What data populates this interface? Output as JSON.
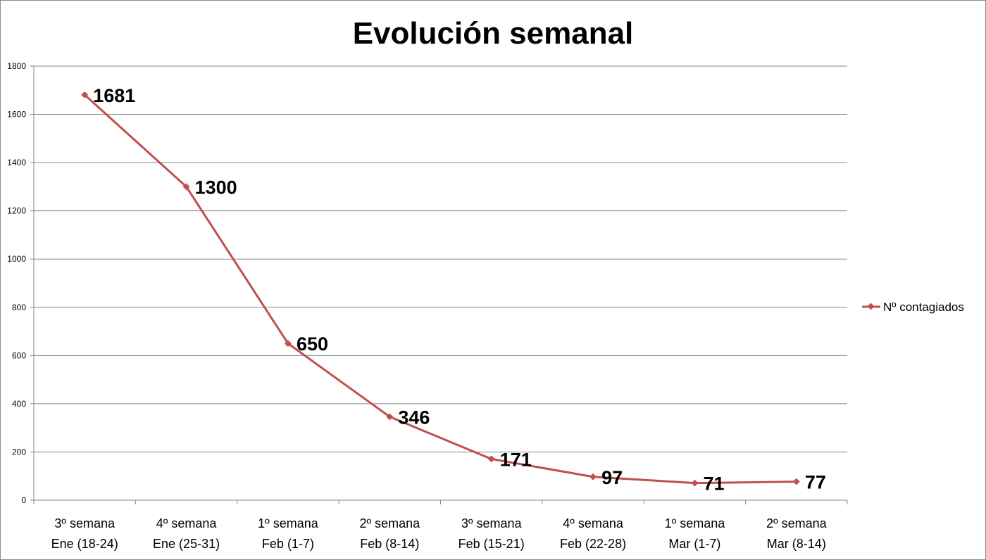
{
  "chart_data": {
    "type": "line",
    "title": "Evolución semanal",
    "categories": [
      [
        "3º semana",
        "Ene (18-24)"
      ],
      [
        "4º semana",
        "Ene (25-31)"
      ],
      [
        "1º semana",
        "Feb (1-7)"
      ],
      [
        "2º semana",
        "Feb (8-14)"
      ],
      [
        "3º semana",
        "Feb (15-21)"
      ],
      [
        "4º semana",
        "Feb (22-28)"
      ],
      [
        "1º semana",
        "Mar (1-7)"
      ],
      [
        "2º semana",
        "Mar (8-14)"
      ]
    ],
    "series": [
      {
        "name": "Nº contagiados",
        "values": [
          1681,
          1300,
          650,
          346,
          171,
          97,
          71,
          77
        ],
        "color": "#C0504D"
      }
    ],
    "ylim": [
      0,
      1800
    ],
    "yticks": [
      0,
      200,
      400,
      600,
      800,
      1000,
      1200,
      1400,
      1600,
      1800
    ],
    "grid": true,
    "gridColor": "#868686",
    "legend": "right",
    "data_labels": true
  }
}
